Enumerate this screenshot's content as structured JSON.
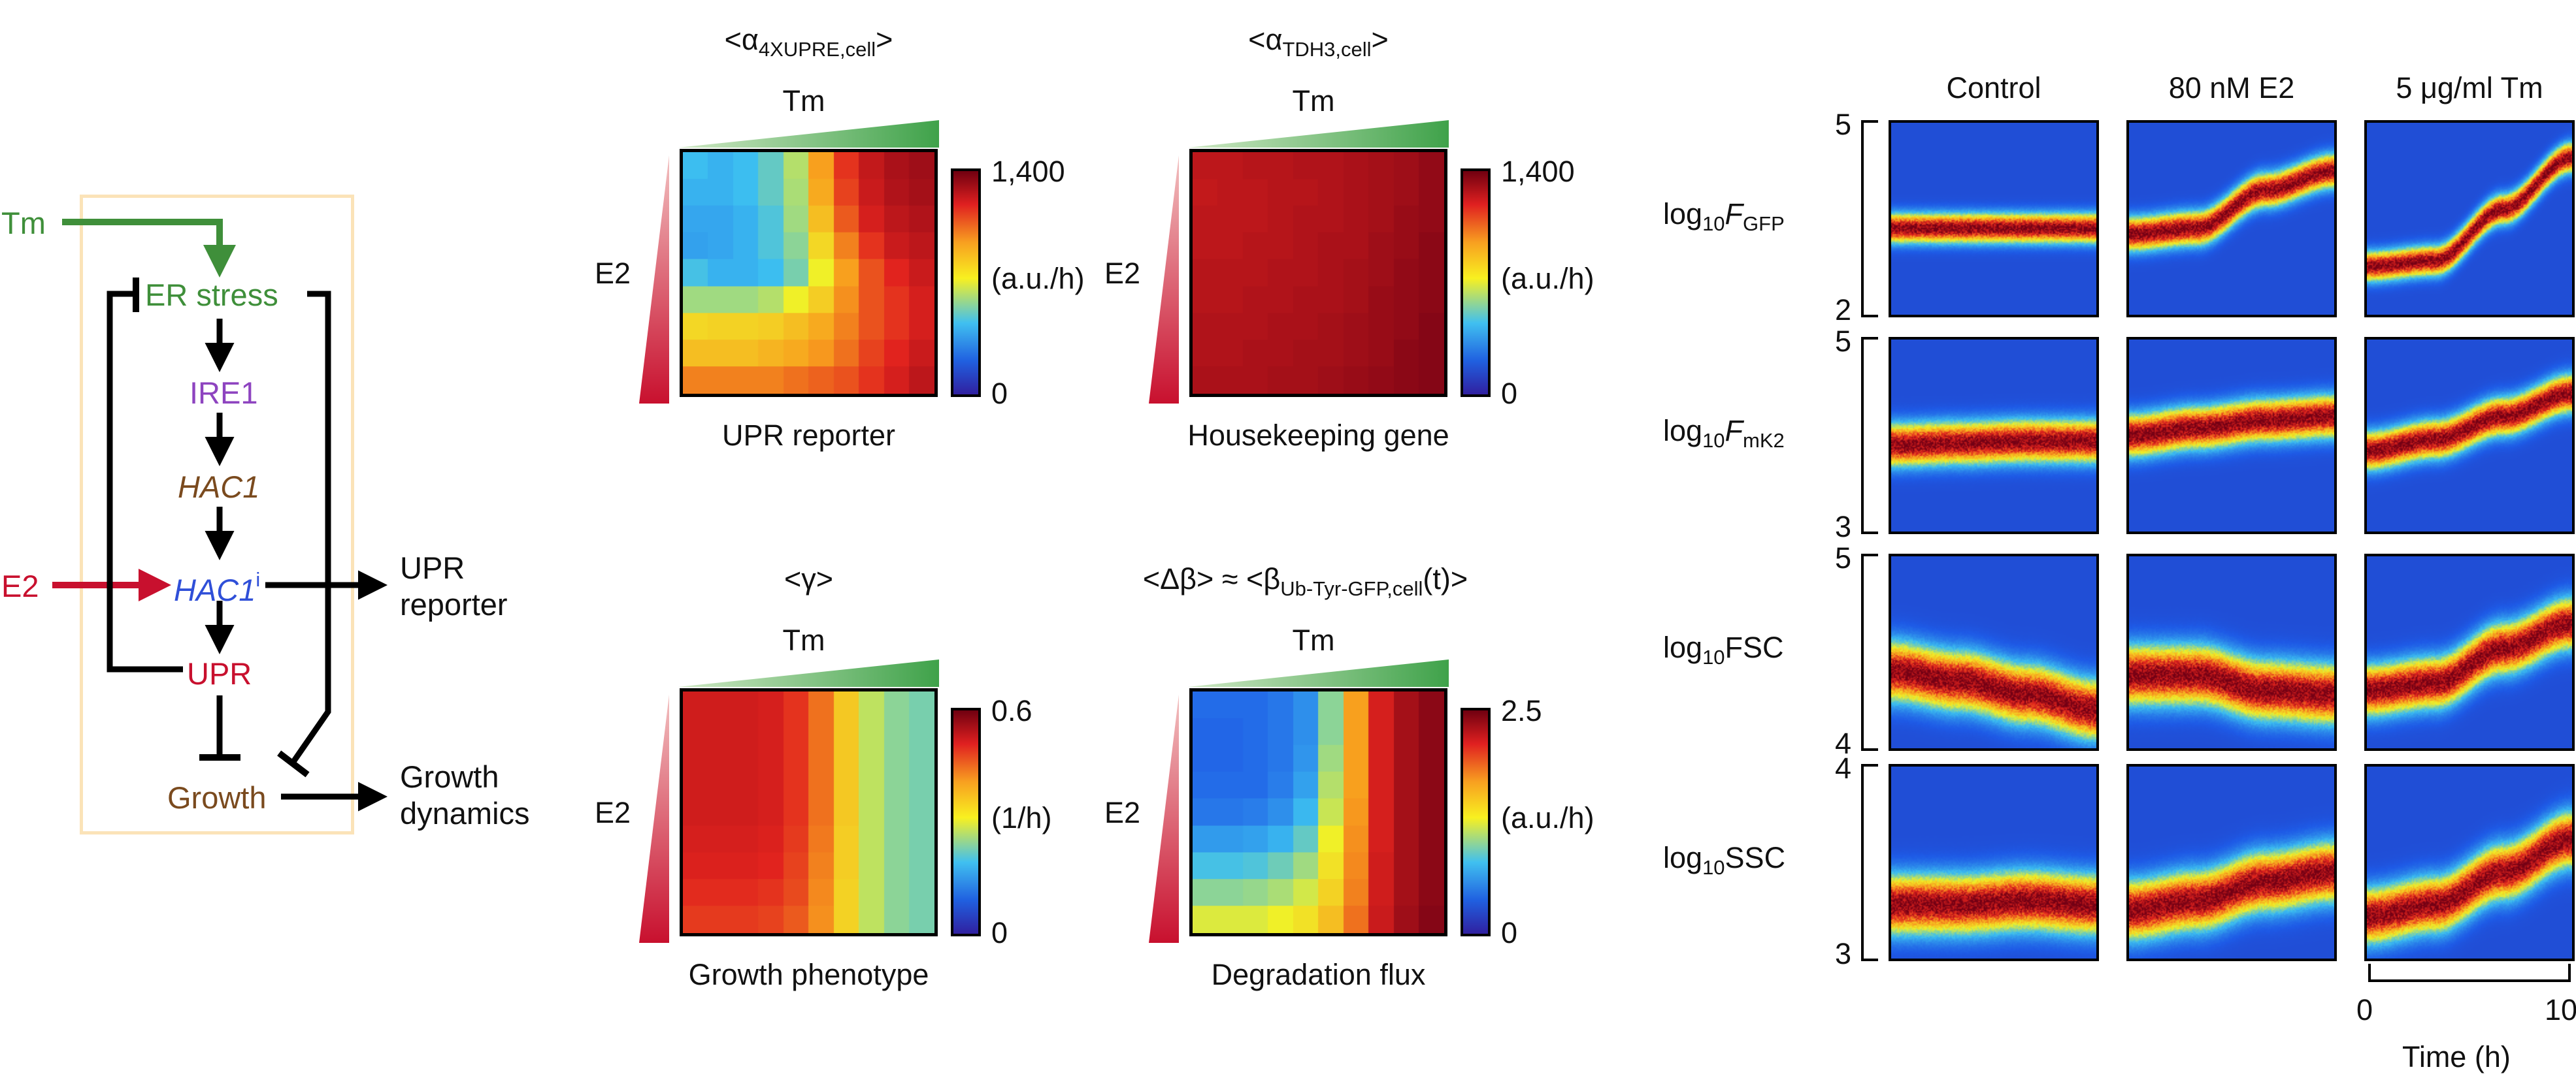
{
  "pathway": {
    "tm": "Tm",
    "e2": "E2",
    "er_stress": "ER stress",
    "ire1": "IRE1",
    "hac1": "HAC1",
    "hac1i_main": "HAC1",
    "hac1i_sup": "i",
    "upr": "UPR",
    "growth": "Growth",
    "upr_reporter_l1": "UPR",
    "upr_reporter_l2": "reporter",
    "growth_dyn_l1": "Growth",
    "growth_dyn_l2": "dynamics",
    "colors": {
      "tm": "#3f8f3a",
      "e2": "#c8102e",
      "ire1": "#8e44c0",
      "hac1": "#7a4a1e",
      "hac1i": "#2f4fd8",
      "upr": "#c8102e",
      "growth": "#7a4a1e",
      "box": "#fbe3b8"
    }
  },
  "heatmaps": [
    {
      "id": "upr",
      "title_pre": "<α",
      "title_sub": "4XUPRE,cell",
      "title_post": ">",
      "tm": "Tm",
      "e2": "E2",
      "caption": "UPR reporter",
      "cb_max": "1,400",
      "cb_unit": "(a.u./h)",
      "cb_min": "0",
      "grid": [
        [
          0.32,
          0.3,
          0.32,
          0.36,
          0.44,
          0.66,
          0.8,
          0.87,
          0.91,
          0.93
        ],
        [
          0.3,
          0.3,
          0.32,
          0.36,
          0.43,
          0.64,
          0.78,
          0.86,
          0.9,
          0.92
        ],
        [
          0.28,
          0.28,
          0.3,
          0.34,
          0.42,
          0.6,
          0.75,
          0.84,
          0.88,
          0.9
        ],
        [
          0.27,
          0.28,
          0.3,
          0.34,
          0.4,
          0.55,
          0.7,
          0.8,
          0.86,
          0.88
        ],
        [
          0.33,
          0.3,
          0.3,
          0.32,
          0.38,
          0.5,
          0.66,
          0.76,
          0.82,
          0.86
        ],
        [
          0.42,
          0.42,
          0.42,
          0.44,
          0.5,
          0.57,
          0.68,
          0.76,
          0.8,
          0.84
        ],
        [
          0.55,
          0.56,
          0.56,
          0.57,
          0.6,
          0.64,
          0.7,
          0.76,
          0.8,
          0.84
        ],
        [
          0.6,
          0.6,
          0.6,
          0.62,
          0.64,
          0.67,
          0.72,
          0.78,
          0.82,
          0.86
        ],
        [
          0.7,
          0.7,
          0.7,
          0.7,
          0.72,
          0.74,
          0.76,
          0.8,
          0.84,
          0.88
        ]
      ]
    },
    {
      "id": "tdh3",
      "title_pre": "<α",
      "title_sub": "TDH3,cell",
      "title_post": ">",
      "tm": "Tm",
      "e2": "E2",
      "caption": "Housekeeping gene",
      "cb_max": "1,400",
      "cb_unit": "(a.u./h)",
      "cb_min": "0",
      "grid": [
        [
          0.88,
          0.88,
          0.89,
          0.89,
          0.9,
          0.9,
          0.91,
          0.92,
          0.93,
          0.95
        ],
        [
          0.87,
          0.88,
          0.88,
          0.89,
          0.89,
          0.9,
          0.91,
          0.92,
          0.93,
          0.95
        ],
        [
          0.88,
          0.88,
          0.88,
          0.89,
          0.9,
          0.9,
          0.91,
          0.92,
          0.94,
          0.95
        ],
        [
          0.88,
          0.88,
          0.89,
          0.89,
          0.9,
          0.91,
          0.91,
          0.93,
          0.94,
          0.96
        ],
        [
          0.89,
          0.89,
          0.89,
          0.9,
          0.9,
          0.91,
          0.92,
          0.93,
          0.95,
          0.96
        ],
        [
          0.89,
          0.89,
          0.9,
          0.9,
          0.91,
          0.91,
          0.92,
          0.94,
          0.95,
          0.96
        ],
        [
          0.9,
          0.9,
          0.9,
          0.91,
          0.91,
          0.92,
          0.93,
          0.94,
          0.95,
          0.97
        ],
        [
          0.9,
          0.9,
          0.91,
          0.91,
          0.92,
          0.92,
          0.93,
          0.94,
          0.96,
          0.97
        ],
        [
          0.91,
          0.91,
          0.91,
          0.92,
          0.92,
          0.93,
          0.94,
          0.95,
          0.96,
          0.97
        ]
      ]
    },
    {
      "id": "gamma",
      "title_pre": "<γ>",
      "title_sub": "",
      "title_post": "",
      "tm": "Tm",
      "e2": "E2",
      "caption": "Growth phenotype",
      "cb_max": "0.6",
      "cb_unit": "(1/h)",
      "cb_min": "0",
      "grid": [
        [
          0.85,
          0.85,
          0.85,
          0.84,
          0.8,
          0.72,
          0.58,
          0.45,
          0.4,
          0.38
        ],
        [
          0.85,
          0.85,
          0.85,
          0.84,
          0.8,
          0.72,
          0.58,
          0.45,
          0.4,
          0.38
        ],
        [
          0.85,
          0.85,
          0.85,
          0.84,
          0.8,
          0.72,
          0.58,
          0.45,
          0.4,
          0.38
        ],
        [
          0.85,
          0.85,
          0.85,
          0.84,
          0.8,
          0.72,
          0.58,
          0.45,
          0.4,
          0.38
        ],
        [
          0.85,
          0.85,
          0.85,
          0.84,
          0.8,
          0.72,
          0.58,
          0.45,
          0.4,
          0.38
        ],
        [
          0.84,
          0.84,
          0.84,
          0.83,
          0.79,
          0.71,
          0.57,
          0.45,
          0.4,
          0.38
        ],
        [
          0.83,
          0.83,
          0.83,
          0.82,
          0.78,
          0.7,
          0.57,
          0.45,
          0.4,
          0.38
        ],
        [
          0.81,
          0.81,
          0.81,
          0.8,
          0.77,
          0.69,
          0.56,
          0.45,
          0.4,
          0.38
        ],
        [
          0.79,
          0.79,
          0.79,
          0.78,
          0.75,
          0.68,
          0.56,
          0.45,
          0.4,
          0.38
        ]
      ]
    },
    {
      "id": "degradation",
      "title_pre": "<Δβ> ≈ <β",
      "title_sub": "Ub-Tyr-GFP,cell",
      "title_post": "(t)>",
      "tm": "Tm",
      "e2": "E2",
      "caption": "Degradation flux",
      "cb_max": "2.5",
      "cb_unit": "(a.u./h)",
      "cb_min": "0",
      "grid": [
        [
          0.18,
          0.18,
          0.18,
          0.2,
          0.24,
          0.4,
          0.66,
          0.84,
          0.92,
          0.96
        ],
        [
          0.17,
          0.17,
          0.18,
          0.2,
          0.24,
          0.4,
          0.66,
          0.84,
          0.92,
          0.96
        ],
        [
          0.17,
          0.17,
          0.18,
          0.2,
          0.25,
          0.42,
          0.66,
          0.84,
          0.92,
          0.96
        ],
        [
          0.18,
          0.18,
          0.18,
          0.21,
          0.27,
          0.44,
          0.66,
          0.84,
          0.92,
          0.96
        ],
        [
          0.2,
          0.2,
          0.21,
          0.24,
          0.31,
          0.46,
          0.67,
          0.84,
          0.92,
          0.96
        ],
        [
          0.26,
          0.26,
          0.27,
          0.3,
          0.36,
          0.5,
          0.68,
          0.84,
          0.92,
          0.96
        ],
        [
          0.33,
          0.33,
          0.34,
          0.37,
          0.42,
          0.53,
          0.69,
          0.85,
          0.92,
          0.96
        ],
        [
          0.4,
          0.4,
          0.41,
          0.43,
          0.47,
          0.56,
          0.7,
          0.85,
          0.92,
          0.96
        ],
        [
          0.48,
          0.48,
          0.48,
          0.5,
          0.53,
          0.6,
          0.72,
          0.86,
          0.93,
          0.97
        ]
      ]
    }
  ],
  "distributions": {
    "columns": [
      "Control",
      "80 nM E2",
      "5 μg/ml Tm"
    ],
    "rows": [
      {
        "label_pre": "log",
        "label_sub": "10",
        "label_var": "F",
        "label_vsub": "GFP",
        "label_post": "",
        "ymax": "5",
        "ymin": "2",
        "center": [
          [
            0.55,
            0.55,
            0.55,
            0.55
          ],
          [
            0.58,
            0.55,
            0.35,
            0.25
          ],
          [
            0.75,
            0.72,
            0.45,
            0.18
          ]
        ],
        "width": [
          0.07,
          0.08,
          0.07
        ]
      },
      {
        "label_pre": "log",
        "label_sub": "10",
        "label_var": "F",
        "label_vsub": "mK2",
        "label_post": "",
        "ymax": "5",
        "ymin": "3",
        "center": [
          [
            0.55,
            0.54,
            0.53,
            0.53
          ],
          [
            0.5,
            0.46,
            0.42,
            0.4
          ],
          [
            0.58,
            0.52,
            0.4,
            0.28
          ]
        ],
        "width": [
          0.1,
          0.1,
          0.09
        ]
      },
      {
        "label_pre": "log",
        "label_sub": "10",
        "label_var": "",
        "label_vsub": "",
        "label_post": "FSC",
        "ymax": "5",
        "ymin": "4",
        "center": [
          [
            0.6,
            0.65,
            0.72,
            0.8
          ],
          [
            0.62,
            0.62,
            0.7,
            0.72
          ],
          [
            0.7,
            0.66,
            0.48,
            0.35
          ]
        ],
        "width": [
          0.14,
          0.14,
          0.12
        ]
      },
      {
        "label_pre": "log",
        "label_sub": "10",
        "label_var": "",
        "label_vsub": "",
        "label_post": "SSC",
        "ymax": "4",
        "ymin": "3",
        "center": [
          [
            0.72,
            0.72,
            0.7,
            0.72
          ],
          [
            0.75,
            0.7,
            0.6,
            0.55
          ],
          [
            0.78,
            0.72,
            0.55,
            0.38
          ]
        ],
        "width": [
          0.14,
          0.14,
          0.13
        ]
      }
    ],
    "time_axis": {
      "label": "Time (h)",
      "min": "0",
      "max": "10"
    }
  }
}
